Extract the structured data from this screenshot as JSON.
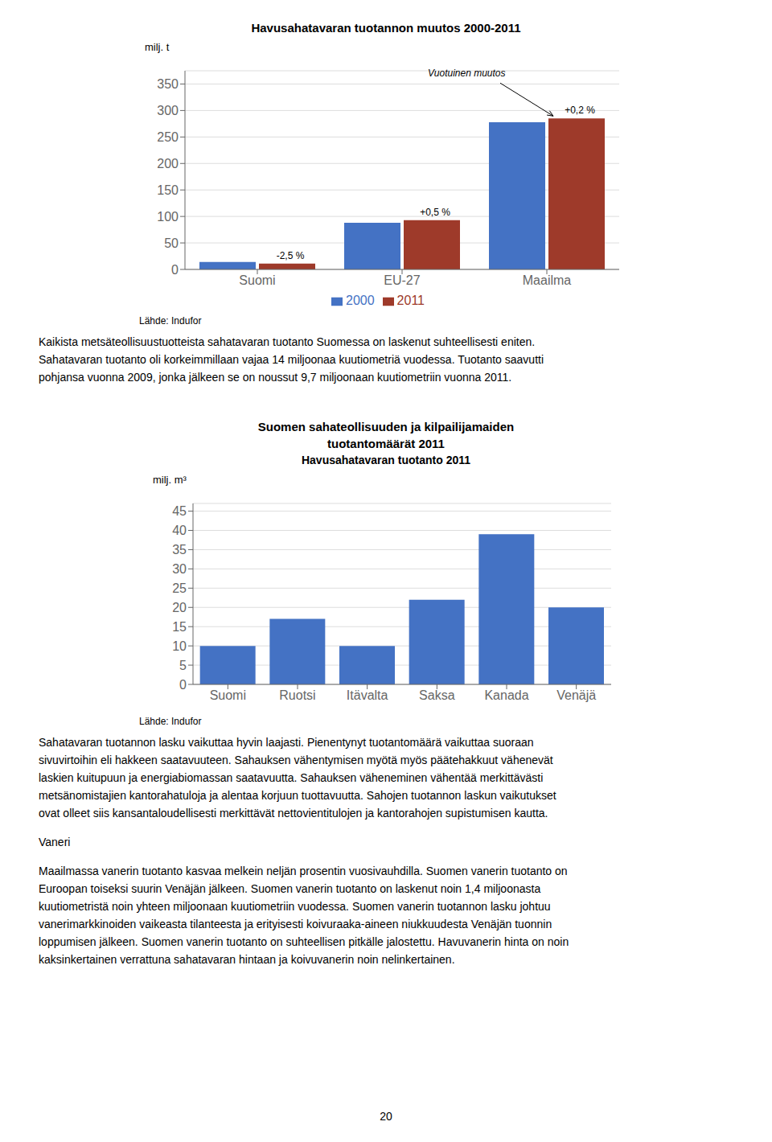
{
  "chart_data": [
    {
      "type": "bar",
      "title": "Havusahatavaran tuotannon muutos 2000-2011",
      "ylabel": "milj. t",
      "categories": [
        "Suomi",
        "EU-27",
        "Maailma"
      ],
      "series": [
        {
          "name": "2000",
          "color": "#4472C4",
          "values": [
            14,
            88,
            278
          ]
        },
        {
          "name": "2011",
          "color": "#9E3A2A",
          "values": [
            11,
            93,
            285
          ]
        }
      ],
      "annotations": [
        {
          "text": "-2,5 %",
          "category": "Suomi",
          "series": "2011"
        },
        {
          "text": "+0,5 %",
          "category": "EU-27",
          "series": "2011"
        },
        {
          "text": "+0,2 %",
          "category": "Maailma",
          "series": "2011"
        }
      ],
      "callout": {
        "text": "Vuotuinen muutos",
        "category": "Maailma",
        "series": "2011"
      },
      "ylim": [
        0,
        375
      ],
      "yticks": [
        0,
        50,
        100,
        150,
        200,
        250,
        300,
        350
      ],
      "grid": true,
      "legend": "bottom",
      "source": "Lähde: Indufor",
      "text_after": [
        {
          "lines": [
            "Kaikista metsäteollisuustuotteista sahatavaran tuotanto Suomessa on laskenut suhteellisesti eniten.",
            "Sahatavaran tuotanto oli korkeimmillaan vajaa 14 miljoonaa kuutiometriä vuodessa. Tuotanto saavutti",
            "pohjansa vuonna 2009, jonka jälkeen se on noussut 9,7 miljoonaan kuutiometriin vuonna 2011."
          ]
        }
      ]
    },
    {
      "type": "bar",
      "title": [
        "Suomen sahateollisuuden ja kilpailijamaiden",
        "tuotantomäärät 2011"
      ],
      "subtitle": "Havusahatavaran tuotanto 2011",
      "ylabel": "milj. m³",
      "categories": [
        "Suomi",
        "Ruotsi",
        "Itävalta",
        "Saksa",
        "Kanada",
        "Venäjä"
      ],
      "values": [
        10,
        17,
        10,
        22,
        39,
        20
      ],
      "color": "#4472C4",
      "ylim": [
        0,
        47
      ],
      "yticks": [
        0,
        5,
        10,
        15,
        20,
        25,
        30,
        35,
        40,
        45
      ],
      "grid": true,
      "source": "Lähde: Indufor",
      "text_after": [
        {
          "lines": [
            "Sahatavaran tuotannon lasku vaikuttaa hyvin laajasti. Pienentynyt tuotantomäärä vaikuttaa suoraan",
            "sivuvirtoihin eli hakkeen saatavuuteen. Sahauksen vähentymisen myötä myös päätehakkuut vähenevät",
            "laskien kuitupuun ja energiabiomassan saatavuutta. Sahauksen väheneminen vähentää merkittävästi",
            "metsänomistajien kantorahatuloja ja alentaa korjuun tuottavuutta. Sahojen tuotannon laskun vaikutukset",
            "ovat olleet siis kansantaloudellisesti merkittävät nettovientitulojen ja kantorahojen supistumisen kautta."
          ]
        },
        {
          "heading": "Vaneri"
        },
        {
          "lines": [
            "Maailmassa vanerin tuotanto kasvaa melkein neljän prosentin vuosivauhdilla. Suomen vanerin tuotanto on",
            "Euroopan toiseksi suurin Venäjän jälkeen. Suomen vanerin tuotanto on laskenut noin 1,4 miljoonasta",
            "kuutiometristä noin yhteen miljoonaan kuutiometriin vuodessa. Suomen vanerin tuotannon lasku johtuu",
            "vanerimarkkinoiden vaikeasta tilanteesta ja erityisesti koivuraaka-aineen niukkuudesta Venäjän tuonnin",
            "loppumisen jälkeen. Suomen vanerin tuotanto on suhteellisen pitkälle jalostettu. Havuvanerin hinta on noin",
            "kaksinkertainen verrattuna sahatavaran hintaan ja koivuvanerin noin nelinkertainen."
          ]
        }
      ]
    }
  ],
  "page_number": "20"
}
